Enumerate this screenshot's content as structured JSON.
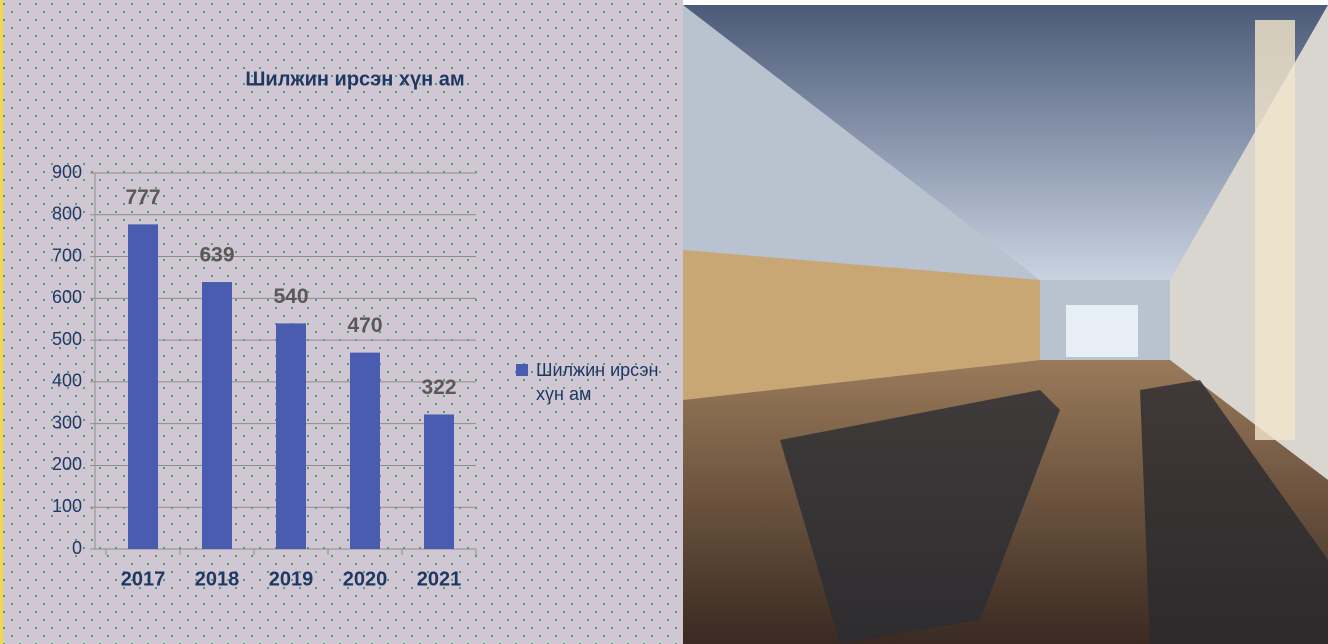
{
  "chart_data": {
    "type": "bar",
    "title": "Шилжин ирсэн хүн ам",
    "categories": [
      "2017",
      "2018",
      "2019",
      "2020",
      "2021"
    ],
    "series": [
      {
        "name": "Шилжин ирсэн хүн ам",
        "color": "#4a5cb0",
        "values": [
          777,
          639,
          540,
          470,
          322
        ]
      }
    ],
    "ylim": [
      0,
      900
    ],
    "yticks": [
      0,
      100,
      200,
      300,
      400,
      500,
      600,
      700,
      800,
      900
    ],
    "grid": true,
    "legend": "right"
  }
}
